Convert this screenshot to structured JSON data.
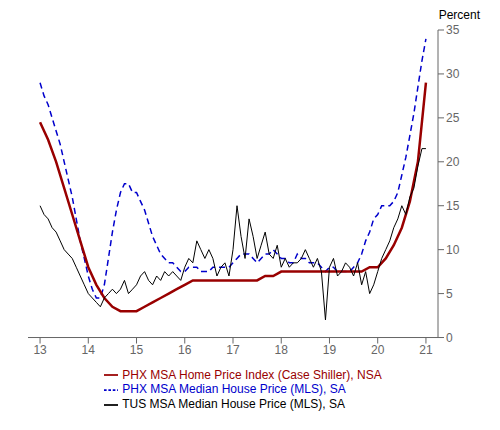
{
  "chart_data": {
    "type": "line",
    "y_label": "Percent",
    "xlim": [
      12.75,
      21.25
    ],
    "xticks": [
      13,
      14,
      15,
      16,
      17,
      18,
      19,
      20,
      21
    ],
    "ylim": [
      0,
      35
    ],
    "yticks": [
      0,
      5,
      10,
      15,
      20,
      25,
      30,
      35
    ],
    "grid": false,
    "legend": "bottom",
    "series": [
      {
        "name": "PHX MSA Median House Price (MLS), SA",
        "color": "#0000CC",
        "line_style": "dashed",
        "x": [
          13.0,
          13.083,
          13.167,
          13.25,
          13.333,
          13.417,
          13.5,
          13.583,
          13.667,
          13.75,
          13.833,
          13.917,
          14.0,
          14.083,
          14.167,
          14.25,
          14.333,
          14.417,
          14.5,
          14.583,
          14.667,
          14.75,
          14.833,
          14.917,
          15.0,
          15.083,
          15.167,
          15.25,
          15.333,
          15.417,
          15.5,
          15.583,
          15.667,
          15.75,
          15.833,
          15.917,
          16.0,
          16.083,
          16.167,
          16.25,
          16.333,
          16.417,
          16.5,
          16.583,
          16.667,
          16.75,
          16.833,
          16.917,
          17.0,
          17.083,
          17.167,
          17.25,
          17.333,
          17.417,
          17.5,
          17.583,
          17.667,
          17.75,
          17.833,
          17.917,
          18.0,
          18.083,
          18.167,
          18.25,
          18.333,
          18.417,
          18.5,
          18.583,
          18.667,
          18.75,
          18.833,
          18.917,
          19.0,
          19.083,
          19.167,
          19.25,
          19.333,
          19.417,
          19.5,
          19.583,
          19.667,
          19.75,
          19.833,
          19.917,
          20.0,
          20.083,
          20.167,
          20.25,
          20.333,
          20.417,
          20.5,
          20.583,
          20.667,
          20.75,
          20.833,
          20.917,
          21.0
        ],
        "values": [
          29.0,
          27.5,
          26.5,
          25.0,
          23.5,
          22.0,
          20.0,
          18.0,
          16.0,
          13.5,
          11.0,
          9.0,
          7.0,
          5.5,
          4.5,
          4.5,
          6.0,
          9.0,
          12.0,
          14.5,
          16.5,
          17.5,
          17.5,
          16.5,
          16.5,
          15.5,
          14.5,
          13.0,
          11.5,
          10.5,
          9.5,
          9.0,
          8.5,
          8.5,
          8.0,
          7.5,
          7.5,
          8.0,
          8.0,
          8.0,
          7.5,
          7.5,
          7.5,
          8.0,
          8.0,
          8.0,
          8.0,
          8.0,
          8.5,
          9.0,
          9.5,
          9.5,
          9.5,
          9.0,
          8.5,
          9.0,
          9.5,
          9.5,
          10.0,
          9.5,
          9.0,
          9.0,
          8.5,
          8.5,
          9.5,
          9.0,
          9.0,
          8.5,
          8.5,
          8.5,
          8.0,
          7.5,
          8.0,
          8.0,
          7.5,
          7.5,
          7.5,
          7.5,
          8.0,
          8.5,
          9.5,
          11.0,
          12.0,
          13.5,
          14.0,
          15.0,
          15.0,
          15.0,
          15.5,
          16.5,
          18.5,
          20.5,
          23.0,
          25.5,
          28.5,
          31.5,
          34.0
        ]
      },
      {
        "name": "PHX MSA Home Price Index (Case Shiller), NSA",
        "color": "#990000",
        "line_style": "solid",
        "x": [
          13.0,
          13.167,
          13.333,
          13.5,
          13.667,
          13.833,
          14.0,
          14.167,
          14.333,
          14.5,
          14.667,
          14.833,
          15.0,
          15.167,
          15.333,
          15.5,
          15.667,
          15.833,
          16.0,
          16.167,
          16.333,
          16.5,
          16.667,
          16.833,
          17.0,
          17.167,
          17.333,
          17.5,
          17.667,
          17.833,
          18.0,
          18.167,
          18.333,
          18.5,
          18.667,
          18.833,
          19.0,
          19.167,
          19.333,
          19.5,
          19.667,
          19.833,
          20.0,
          20.167,
          20.333,
          20.5,
          20.667,
          20.833,
          21.0
        ],
        "values": [
          24.5,
          22.5,
          20.0,
          17.0,
          14.0,
          11.0,
          8.0,
          6.0,
          4.5,
          3.5,
          3.0,
          3.0,
          3.0,
          3.5,
          4.0,
          4.5,
          5.0,
          5.5,
          6.0,
          6.5,
          6.5,
          6.5,
          6.5,
          6.5,
          6.5,
          6.5,
          6.5,
          6.5,
          7.0,
          7.0,
          7.5,
          7.5,
          7.5,
          7.5,
          7.5,
          7.5,
          7.5,
          7.5,
          7.5,
          7.5,
          7.5,
          8.0,
          8.0,
          9.0,
          10.5,
          12.5,
          15.5,
          20.0,
          29.0
        ]
      },
      {
        "name": "TUS MSA Median House Price (MLS), SA",
        "color": "#000000",
        "line_style": "solid",
        "x": [
          13.0,
          13.083,
          13.167,
          13.25,
          13.333,
          13.417,
          13.5,
          13.583,
          13.667,
          13.75,
          13.833,
          13.917,
          14.0,
          14.083,
          14.167,
          14.25,
          14.333,
          14.417,
          14.5,
          14.583,
          14.667,
          14.75,
          14.833,
          14.917,
          15.0,
          15.083,
          15.167,
          15.25,
          15.333,
          15.417,
          15.5,
          15.583,
          15.667,
          15.75,
          15.833,
          15.917,
          16.0,
          16.083,
          16.167,
          16.25,
          16.333,
          16.417,
          16.5,
          16.583,
          16.667,
          16.75,
          16.833,
          16.917,
          17.0,
          17.083,
          17.167,
          17.25,
          17.333,
          17.417,
          17.5,
          17.583,
          17.667,
          17.75,
          17.833,
          17.917,
          18.0,
          18.083,
          18.167,
          18.25,
          18.333,
          18.417,
          18.5,
          18.583,
          18.667,
          18.75,
          18.833,
          18.917,
          19.0,
          19.083,
          19.167,
          19.25,
          19.333,
          19.417,
          19.5,
          19.583,
          19.667,
          19.75,
          19.833,
          19.917,
          20.0,
          20.083,
          20.167,
          20.25,
          20.333,
          20.417,
          20.5,
          20.583,
          20.667,
          20.75,
          20.833,
          20.917,
          21.0
        ],
        "values": [
          15.0,
          14.0,
          13.5,
          12.5,
          12.0,
          11.0,
          10.0,
          9.5,
          9.0,
          8.0,
          7.0,
          6.0,
          5.0,
          4.5,
          4.0,
          3.5,
          4.5,
          5.0,
          5.5,
          5.0,
          5.5,
          6.5,
          5.0,
          5.5,
          6.0,
          7.0,
          7.5,
          6.5,
          6.0,
          7.0,
          6.5,
          7.5,
          7.0,
          7.5,
          7.0,
          6.5,
          8.0,
          9.0,
          8.5,
          11.0,
          10.0,
          9.0,
          10.0,
          9.0,
          7.0,
          8.0,
          8.5,
          7.0,
          10.0,
          15.0,
          11.5,
          9.0,
          13.5,
          11.5,
          9.0,
          10.5,
          12.0,
          9.5,
          9.0,
          10.5,
          8.0,
          9.0,
          8.0,
          8.5,
          8.5,
          9.0,
          10.0,
          9.0,
          8.0,
          9.0,
          7.5,
          2.0,
          8.0,
          9.0,
          7.0,
          7.5,
          8.5,
          8.0,
          7.0,
          8.5,
          6.0,
          7.5,
          5.0,
          6.0,
          7.5,
          9.0,
          10.0,
          11.0,
          12.5,
          13.5,
          15.0,
          14.0,
          16.0,
          17.0,
          19.5,
          21.5,
          21.5
        ]
      }
    ]
  }
}
